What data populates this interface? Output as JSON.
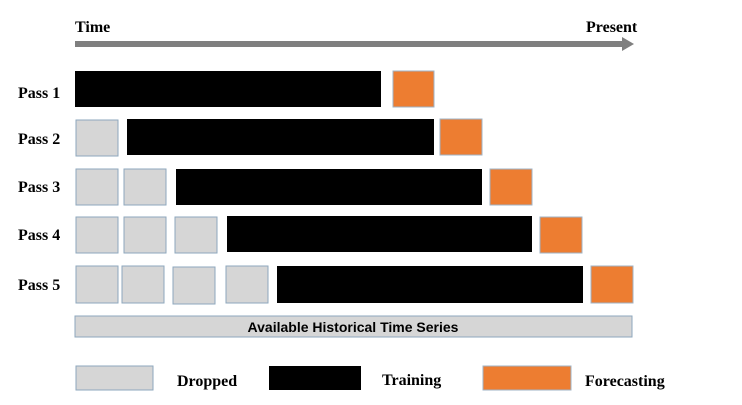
{
  "timeline": {
    "start_label": "Time",
    "end_label": "Present"
  },
  "passes": [
    {
      "label": "Pass 1",
      "dropped_count": 0
    },
    {
      "label": "Pass 2",
      "dropped_count": 1
    },
    {
      "label": "Pass 3",
      "dropped_count": 2
    },
    {
      "label": "Pass 4",
      "dropped_count": 3
    },
    {
      "label": "Pass 5",
      "dropped_count": 4
    }
  ],
  "available_bar": {
    "label": "Available Historical Time Series"
  },
  "legend": {
    "dropped": "Dropped",
    "training": "Training",
    "forecasting": "Forecasting"
  },
  "colors": {
    "dropped_fill": "#d6d6d6",
    "dropped_stroke": "#8ea7bd",
    "training_fill": "#000000",
    "forecasting_fill": "#ed7d31",
    "forecasting_stroke": "#9fb3c6",
    "arrow": "#7f7f7f",
    "available_fill": "#d6d6d6",
    "available_stroke": "#8ea7bd"
  }
}
